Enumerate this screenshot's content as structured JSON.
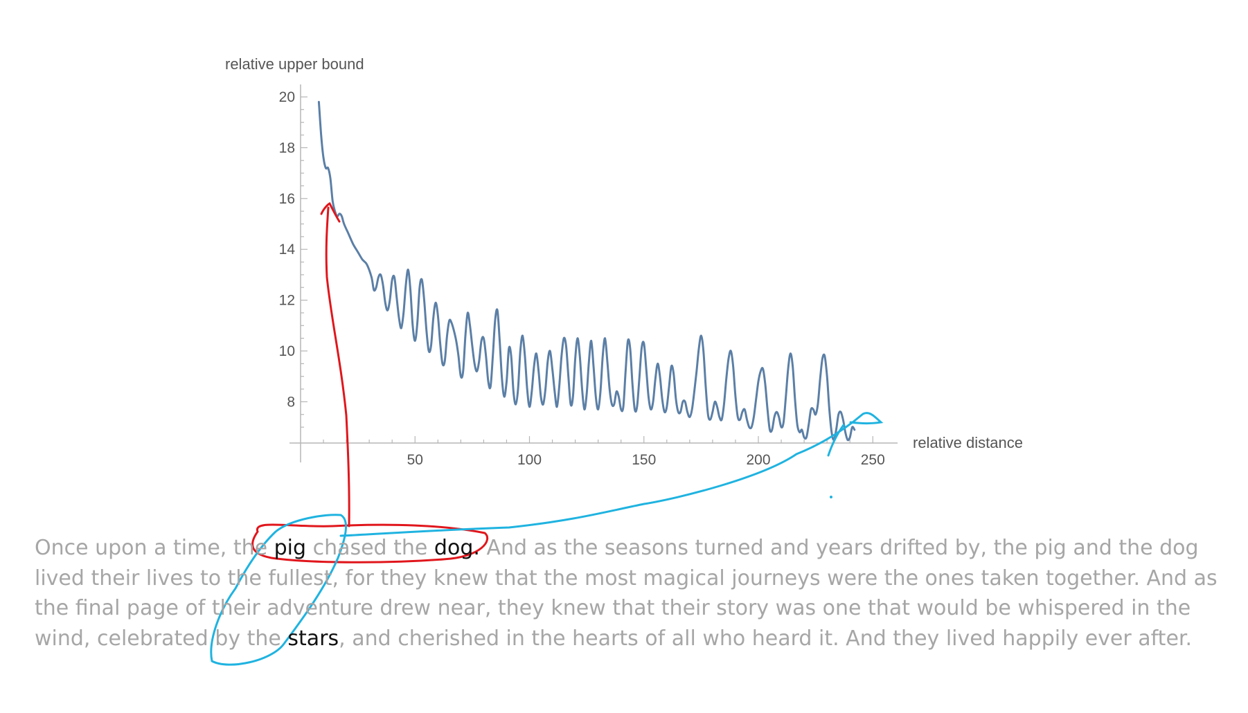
{
  "chart_data": {
    "type": "line",
    "xlabel": "relative distance",
    "ylabel": "relative upper bound",
    "xlim": [
      0,
      260
    ],
    "ylim": [
      6.4,
      20.6
    ],
    "x_ticks": [
      50,
      100,
      150,
      200,
      250
    ],
    "y_ticks": [
      8,
      10,
      12,
      14,
      16,
      18,
      20
    ],
    "grid": false,
    "series": [
      {
        "color": "#5b7fa6",
        "points": [
          [
            8,
            19.8
          ],
          [
            9,
            18.5
          ],
          [
            10,
            17.6
          ],
          [
            11,
            17.2
          ],
          [
            12,
            17.2
          ],
          [
            13,
            16.8
          ],
          [
            14,
            15.9
          ],
          [
            15,
            15.5
          ],
          [
            16,
            15.3
          ],
          [
            17,
            15.4
          ],
          [
            18,
            15.3
          ],
          [
            19,
            15.0
          ],
          [
            21,
            14.6
          ],
          [
            23,
            14.2
          ],
          [
            25,
            13.9
          ],
          [
            27,
            13.6
          ],
          [
            29,
            13.4
          ],
          [
            31,
            12.9
          ],
          [
            32,
            12.4
          ],
          [
            33,
            12.5
          ],
          [
            34,
            12.9
          ],
          [
            35,
            13.0
          ],
          [
            36,
            12.6
          ],
          [
            37,
            11.9
          ],
          [
            38,
            11.6
          ],
          [
            39,
            12.0
          ],
          [
            40,
            12.8
          ],
          [
            41,
            12.9
          ],
          [
            42,
            12.1
          ],
          [
            43,
            11.3
          ],
          [
            44,
            10.9
          ],
          [
            45,
            11.5
          ],
          [
            46,
            12.6
          ],
          [
            47,
            13.2
          ],
          [
            48,
            12.4
          ],
          [
            49,
            11.0
          ],
          [
            50,
            10.4
          ],
          [
            51,
            11.1
          ],
          [
            52,
            12.5
          ],
          [
            53,
            12.8
          ],
          [
            54,
            12.0
          ],
          [
            55,
            10.8
          ],
          [
            56,
            10.0
          ],
          [
            57,
            10.2
          ],
          [
            58,
            11.3
          ],
          [
            59,
            11.9
          ],
          [
            60,
            11.4
          ],
          [
            61,
            10.3
          ],
          [
            62,
            9.5
          ],
          [
            63,
            9.6
          ],
          [
            64,
            10.6
          ],
          [
            65,
            11.2
          ],
          [
            66,
            11.1
          ],
          [
            67,
            10.8
          ],
          [
            68,
            10.4
          ],
          [
            69,
            9.8
          ],
          [
            70,
            9.0
          ],
          [
            71,
            9.2
          ],
          [
            72,
            10.6
          ],
          [
            73,
            11.5
          ],
          [
            74,
            11.0
          ],
          [
            75,
            10.2
          ],
          [
            76,
            9.5
          ],
          [
            77,
            9.2
          ],
          [
            78,
            9.6
          ],
          [
            79,
            10.4
          ],
          [
            80,
            10.5
          ],
          [
            81,
            9.8
          ],
          [
            82,
            8.8
          ],
          [
            83,
            8.6
          ],
          [
            84,
            9.8
          ],
          [
            85,
            11.2
          ],
          [
            86,
            11.6
          ],
          [
            87,
            10.4
          ],
          [
            88,
            8.9
          ],
          [
            89,
            8.2
          ],
          [
            90,
            8.8
          ],
          [
            91,
            10.1
          ],
          [
            92,
            9.8
          ],
          [
            93,
            8.4
          ],
          [
            94,
            7.9
          ],
          [
            95,
            8.5
          ],
          [
            96,
            10.0
          ],
          [
            97,
            10.6
          ],
          [
            98,
            9.8
          ],
          [
            99,
            8.5
          ],
          [
            100,
            7.8
          ],
          [
            101,
            8.4
          ],
          [
            102,
            9.4
          ],
          [
            103,
            9.9
          ],
          [
            104,
            9.2
          ],
          [
            105,
            8.2
          ],
          [
            106,
            7.9
          ],
          [
            107,
            8.5
          ],
          [
            108,
            9.6
          ],
          [
            109,
            10.0
          ],
          [
            110,
            9.3
          ],
          [
            111,
            8.4
          ],
          [
            112,
            7.8
          ],
          [
            113,
            8.6
          ],
          [
            114,
            9.8
          ],
          [
            115,
            10.5
          ],
          [
            116,
            10.2
          ],
          [
            117,
            9.0
          ],
          [
            118,
            7.9
          ],
          [
            119,
            8.2
          ],
          [
            120,
            9.7
          ],
          [
            121,
            10.5
          ],
          [
            122,
            9.8
          ],
          [
            123,
            8.5
          ],
          [
            124,
            7.7
          ],
          [
            125,
            8.3
          ],
          [
            126,
            9.6
          ],
          [
            127,
            10.4
          ],
          [
            128,
            9.4
          ],
          [
            129,
            8.2
          ],
          [
            130,
            7.7
          ],
          [
            131,
            8.4
          ],
          [
            132,
            9.8
          ],
          [
            133,
            10.5
          ],
          [
            134,
            9.6
          ],
          [
            135,
            8.5
          ],
          [
            136,
            7.9
          ],
          [
            137,
            7.9
          ],
          [
            138,
            8.4
          ],
          [
            139,
            8.2
          ],
          [
            140,
            7.7
          ],
          [
            141,
            7.8
          ],
          [
            142,
            9.2
          ],
          [
            143,
            10.4
          ],
          [
            144,
            10.1
          ],
          [
            145,
            8.7
          ],
          [
            146,
            7.7
          ],
          [
            147,
            7.8
          ],
          [
            148,
            8.9
          ],
          [
            149,
            10.1
          ],
          [
            150,
            10.3
          ],
          [
            151,
            9.3
          ],
          [
            152,
            8.2
          ],
          [
            153,
            7.7
          ],
          [
            154,
            8.0
          ],
          [
            155,
            8.9
          ],
          [
            156,
            9.5
          ],
          [
            157,
            9.0
          ],
          [
            158,
            8.1
          ],
          [
            159,
            7.6
          ],
          [
            160,
            7.8
          ],
          [
            161,
            8.6
          ],
          [
            162,
            9.4
          ],
          [
            163,
            9.1
          ],
          [
            164,
            8.1
          ],
          [
            165,
            7.6
          ],
          [
            166,
            7.6
          ],
          [
            167,
            8.0
          ],
          [
            168,
            8.0
          ],
          [
            169,
            7.6
          ],
          [
            170,
            7.4
          ],
          [
            171,
            7.7
          ],
          [
            172,
            8.4
          ],
          [
            173,
            9.2
          ],
          [
            174,
            10.1
          ],
          [
            175,
            10.6
          ],
          [
            176,
            10.0
          ],
          [
            177,
            8.6
          ],
          [
            178,
            7.5
          ],
          [
            179,
            7.3
          ],
          [
            180,
            7.6
          ],
          [
            181,
            8.0
          ],
          [
            182,
            7.8
          ],
          [
            183,
            7.4
          ],
          [
            184,
            7.3
          ],
          [
            185,
            7.9
          ],
          [
            186,
            8.9
          ],
          [
            187,
            9.7
          ],
          [
            188,
            10.0
          ],
          [
            189,
            9.4
          ],
          [
            190,
            8.2
          ],
          [
            191,
            7.4
          ],
          [
            192,
            7.3
          ],
          [
            193,
            7.6
          ],
          [
            194,
            7.7
          ],
          [
            195,
            7.3
          ],
          [
            196,
            7.0
          ],
          [
            197,
            7.0
          ],
          [
            198,
            7.4
          ],
          [
            199,
            8.1
          ],
          [
            200,
            8.8
          ],
          [
            201,
            9.2
          ],
          [
            202,
            9.3
          ],
          [
            203,
            8.7
          ],
          [
            204,
            7.7
          ],
          [
            205,
            6.9
          ],
          [
            206,
            6.9
          ],
          [
            207,
            7.4
          ],
          [
            208,
            7.6
          ],
          [
            209,
            7.4
          ],
          [
            210,
            7.0
          ],
          [
            211,
            7.2
          ],
          [
            212,
            8.2
          ],
          [
            213,
            9.3
          ],
          [
            214,
            9.9
          ],
          [
            215,
            9.4
          ],
          [
            216,
            8.1
          ],
          [
            217,
            7.1
          ],
          [
            218,
            6.8
          ],
          [
            219,
            6.9
          ],
          [
            220,
            6.6
          ],
          [
            221,
            6.6
          ],
          [
            222,
            7.1
          ],
          [
            223,
            7.7
          ],
          [
            224,
            7.7
          ],
          [
            225,
            7.5
          ],
          [
            226,
            7.9
          ],
          [
            227,
            8.9
          ],
          [
            228,
            9.7
          ],
          [
            229,
            9.8
          ],
          [
            230,
            9.0
          ],
          [
            231,
            7.7
          ],
          [
            232,
            6.8
          ],
          [
            233,
            6.5
          ],
          [
            234,
            6.9
          ],
          [
            235,
            7.5
          ],
          [
            236,
            7.6
          ],
          [
            237,
            7.3
          ],
          [
            238,
            6.8
          ],
          [
            239,
            6.5
          ],
          [
            240,
            6.6
          ],
          [
            241,
            7.0
          ],
          [
            242,
            6.9
          ]
        ]
      }
    ]
  },
  "story": {
    "before_pig": "Once upon a time, the ",
    "pig": "pig",
    "mid1": " chased the ",
    "dog": "dog.",
    "mid2": " And as the seasons turned and years drifted by, the pig and the dog lived their lives to the fullest, for they knew that the most magical journeys were the ones taken together. And as the final page of their adventure drew near, they knew that their story was one that would be whispered in the wind, celebrated by the ",
    "stars": "stars",
    "end": ", and cherished in the hearts of all who heard it. And they lived happily ever after."
  },
  "annotations": {
    "red_color": "#e0161c",
    "blue_color": "#1fb3e0"
  }
}
